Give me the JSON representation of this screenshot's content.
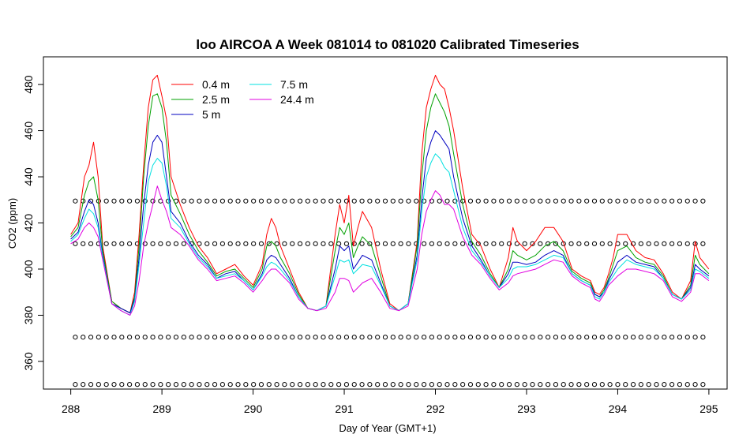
{
  "chart_data": {
    "type": "line",
    "title": "loo AIRCOA A  Week 081014 to 081020  Calibrated Timeseries",
    "xlabel": "Day of Year (GMT+1)",
    "ylabel": "CO2 (ppm)",
    "xlim": [
      287.7,
      295.2
    ],
    "ylim": [
      348,
      492
    ],
    "xticks": [
      288,
      289,
      290,
      291,
      292,
      293,
      294,
      295
    ],
    "xtick_labels": [
      "288",
      "289",
      "290",
      "291",
      "292",
      "293",
      "294",
      "295"
    ],
    "yticks": [
      360,
      380,
      400,
      420,
      440,
      460,
      480
    ],
    "ytick_labels": [
      "360",
      "380",
      "400",
      "420",
      "440",
      "460",
      "480"
    ],
    "legend": {
      "placement": "top-left",
      "entries": [
        "0.4 m",
        "2.5 m",
        "5 m",
        "7.5 m",
        "24.4 m"
      ]
    },
    "series": [
      {
        "name": "0.4 m",
        "color": "#ff0000",
        "x": [
          288.0,
          288.08,
          288.15,
          288.2,
          288.25,
          288.3,
          288.35,
          288.45,
          288.55,
          288.65,
          288.7,
          288.75,
          288.8,
          288.85,
          288.9,
          288.95,
          289.0,
          289.05,
          289.1,
          289.2,
          289.3,
          289.4,
          289.5,
          289.6,
          289.7,
          289.8,
          289.9,
          290.0,
          290.1,
          290.15,
          290.2,
          290.25,
          290.3,
          290.4,
          290.5,
          290.6,
          290.7,
          290.8,
          290.9,
          290.95,
          291.0,
          291.05,
          291.1,
          291.15,
          291.2,
          291.3,
          291.4,
          291.5,
          291.6,
          291.7,
          291.8,
          291.85,
          291.9,
          291.95,
          292.0,
          292.05,
          292.1,
          292.15,
          292.2,
          292.3,
          292.4,
          292.5,
          292.6,
          292.7,
          292.8,
          292.85,
          292.9,
          293.0,
          293.1,
          293.2,
          293.3,
          293.4,
          293.5,
          293.6,
          293.7,
          293.75,
          293.8,
          293.85,
          293.9,
          293.95,
          294.0,
          294.1,
          294.2,
          294.3,
          294.4,
          294.5,
          294.6,
          294.7,
          294.8,
          294.85,
          294.9,
          295.0
        ],
        "y": [
          415,
          420,
          440,
          445,
          455,
          440,
          410,
          386,
          383,
          381,
          390,
          415,
          445,
          470,
          482,
          484,
          475,
          465,
          440,
          428,
          418,
          410,
          405,
          398,
          400,
          402,
          397,
          393,
          402,
          415,
          422,
          418,
          410,
          400,
          390,
          383,
          382,
          384,
          415,
          428,
          420,
          432,
          410,
          418,
          425,
          418,
          400,
          385,
          382,
          385,
          412,
          450,
          470,
          478,
          484,
          480,
          478,
          470,
          460,
          435,
          415,
          410,
          400,
          392,
          405,
          418,
          412,
          408,
          412,
          418,
          418,
          412,
          400,
          397,
          395,
          390,
          389,
          392,
          398,
          405,
          415,
          415,
          408,
          405,
          404,
          398,
          390,
          387,
          395,
          412,
          405,
          400
        ]
      },
      {
        "name": "2.5 m",
        "color": "#00a000",
        "x": [
          288.0,
          288.08,
          288.15,
          288.2,
          288.25,
          288.3,
          288.35,
          288.45,
          288.55,
          288.65,
          288.7,
          288.75,
          288.8,
          288.85,
          288.9,
          288.95,
          289.0,
          289.05,
          289.1,
          289.2,
          289.3,
          289.4,
          289.5,
          289.6,
          289.7,
          289.8,
          289.9,
          290.0,
          290.1,
          290.15,
          290.2,
          290.25,
          290.3,
          290.4,
          290.5,
          290.6,
          290.7,
          290.8,
          290.9,
          290.95,
          291.0,
          291.05,
          291.1,
          291.15,
          291.2,
          291.3,
          291.4,
          291.5,
          291.6,
          291.7,
          291.8,
          291.85,
          291.9,
          291.95,
          292.0,
          292.05,
          292.1,
          292.15,
          292.2,
          292.3,
          292.4,
          292.5,
          292.6,
          292.7,
          292.8,
          292.85,
          292.9,
          293.0,
          293.1,
          293.2,
          293.3,
          293.4,
          293.5,
          293.6,
          293.7,
          293.75,
          293.8,
          293.85,
          293.9,
          293.95,
          294.0,
          294.1,
          294.2,
          294.3,
          294.4,
          294.5,
          294.6,
          294.7,
          294.8,
          294.85,
          294.9,
          295.0
        ],
        "y": [
          414,
          418,
          432,
          438,
          440,
          430,
          408,
          386,
          383,
          381,
          388,
          410,
          440,
          462,
          475,
          476,
          470,
          455,
          432,
          424,
          415,
          408,
          403,
          397,
          399,
          400,
          396,
          392,
          400,
          410,
          412,
          410,
          405,
          398,
          389,
          383,
          382,
          384,
          408,
          418,
          415,
          420,
          405,
          410,
          414,
          410,
          397,
          384,
          382,
          385,
          410,
          440,
          460,
          470,
          476,
          472,
          468,
          462,
          450,
          428,
          412,
          406,
          398,
          392,
          400,
          408,
          406,
          404,
          406,
          410,
          412,
          408,
          399,
          396,
          394,
          389,
          388,
          391,
          396,
          402,
          408,
          410,
          405,
          403,
          402,
          397,
          389,
          387,
          393,
          406,
          402,
          398
        ]
      },
      {
        "name": "5 m",
        "color": "#0000c0",
        "x": [
          288.0,
          288.08,
          288.15,
          288.2,
          288.25,
          288.3,
          288.35,
          288.45,
          288.55,
          288.65,
          288.7,
          288.75,
          288.8,
          288.85,
          288.9,
          288.95,
          289.0,
          289.05,
          289.1,
          289.2,
          289.3,
          289.4,
          289.5,
          289.6,
          289.7,
          289.8,
          289.9,
          290.0,
          290.1,
          290.15,
          290.2,
          290.25,
          290.3,
          290.4,
          290.5,
          290.6,
          290.7,
          290.8,
          290.9,
          290.95,
          291.0,
          291.05,
          291.1,
          291.15,
          291.2,
          291.3,
          291.4,
          291.5,
          291.6,
          291.7,
          291.8,
          291.85,
          291.9,
          291.95,
          292.0,
          292.05,
          292.1,
          292.15,
          292.2,
          292.3,
          292.4,
          292.5,
          292.6,
          292.7,
          292.8,
          292.85,
          292.9,
          293.0,
          293.1,
          293.2,
          293.3,
          293.4,
          293.5,
          293.6,
          293.7,
          293.75,
          293.8,
          293.85,
          293.9,
          293.95,
          294.0,
          294.1,
          294.2,
          294.3,
          294.4,
          294.5,
          294.6,
          294.7,
          294.8,
          294.85,
          294.9,
          295.0
        ],
        "y": [
          413,
          416,
          425,
          430,
          428,
          420,
          406,
          385,
          383,
          381,
          387,
          405,
          428,
          445,
          455,
          458,
          455,
          440,
          425,
          420,
          412,
          406,
          402,
          396,
          398,
          399,
          395,
          391,
          398,
          404,
          406,
          405,
          402,
          396,
          388,
          383,
          382,
          384,
          400,
          410,
          408,
          410,
          400,
          403,
          406,
          404,
          394,
          384,
          382,
          385,
          406,
          430,
          448,
          455,
          460,
          458,
          455,
          452,
          440,
          422,
          410,
          404,
          397,
          392,
          398,
          403,
          403,
          402,
          403,
          406,
          408,
          406,
          398,
          395,
          393,
          389,
          388,
          390,
          395,
          399,
          403,
          406,
          403,
          402,
          401,
          396,
          389,
          387,
          392,
          402,
          400,
          397
        ]
      },
      {
        "name": "7.5 m",
        "color": "#00e0e0",
        "x": [
          288.0,
          288.08,
          288.15,
          288.2,
          288.25,
          288.3,
          288.35,
          288.45,
          288.55,
          288.65,
          288.7,
          288.75,
          288.8,
          288.85,
          288.9,
          288.95,
          289.0,
          289.05,
          289.1,
          289.2,
          289.3,
          289.4,
          289.5,
          289.6,
          289.7,
          289.8,
          289.9,
          290.0,
          290.1,
          290.15,
          290.2,
          290.25,
          290.3,
          290.4,
          290.5,
          290.6,
          290.7,
          290.8,
          290.9,
          290.95,
          291.0,
          291.05,
          291.1,
          291.15,
          291.2,
          291.3,
          291.4,
          291.5,
          291.6,
          291.7,
          291.8,
          291.85,
          291.9,
          291.95,
          292.0,
          292.05,
          292.1,
          292.15,
          292.2,
          292.3,
          292.4,
          292.5,
          292.6,
          292.7,
          292.8,
          292.85,
          292.9,
          293.0,
          293.1,
          293.2,
          293.3,
          293.4,
          293.5,
          293.6,
          293.7,
          293.75,
          293.8,
          293.85,
          293.9,
          293.95,
          294.0,
          294.1,
          294.2,
          294.3,
          294.4,
          294.5,
          294.6,
          294.7,
          294.8,
          294.85,
          294.9,
          295.0
        ],
        "y": [
          412,
          415,
          422,
          426,
          424,
          418,
          405,
          385,
          382,
          380,
          386,
          402,
          420,
          438,
          445,
          448,
          446,
          436,
          422,
          418,
          411,
          405,
          401,
          396,
          397,
          398,
          395,
          391,
          397,
          401,
          403,
          402,
          400,
          395,
          388,
          383,
          382,
          384,
          397,
          404,
          403,
          404,
          398,
          400,
          402,
          401,
          393,
          384,
          382,
          385,
          404,
          425,
          440,
          446,
          450,
          448,
          444,
          442,
          434,
          418,
          408,
          403,
          397,
          392,
          396,
          400,
          401,
          401,
          402,
          404,
          406,
          405,
          398,
          395,
          393,
          388,
          387,
          390,
          394,
          397,
          400,
          404,
          402,
          401,
          400,
          396,
          389,
          387,
          391,
          400,
          399,
          396
        ]
      },
      {
        "name": "24.4 m",
        "color": "#e000e0",
        "x": [
          288.0,
          288.08,
          288.15,
          288.2,
          288.25,
          288.3,
          288.35,
          288.45,
          288.55,
          288.65,
          288.7,
          288.75,
          288.8,
          288.85,
          288.9,
          288.95,
          289.0,
          289.05,
          289.1,
          289.2,
          289.3,
          289.4,
          289.5,
          289.6,
          289.7,
          289.8,
          289.9,
          290.0,
          290.1,
          290.15,
          290.2,
          290.25,
          290.3,
          290.4,
          290.5,
          290.6,
          290.7,
          290.8,
          290.9,
          290.95,
          291.0,
          291.05,
          291.1,
          291.15,
          291.2,
          291.3,
          291.4,
          291.5,
          291.6,
          291.7,
          291.8,
          291.85,
          291.9,
          291.95,
          292.0,
          292.05,
          292.1,
          292.15,
          292.2,
          292.3,
          292.4,
          292.5,
          292.6,
          292.7,
          292.8,
          292.85,
          292.9,
          293.0,
          293.1,
          293.2,
          293.3,
          293.4,
          293.5,
          293.6,
          293.7,
          293.75,
          293.8,
          293.85,
          293.9,
          293.95,
          294.0,
          294.1,
          294.2,
          294.3,
          294.4,
          294.5,
          294.6,
          294.7,
          294.8,
          294.85,
          294.9,
          295.0
        ],
        "y": [
          411,
          413,
          418,
          420,
          418,
          414,
          404,
          385,
          382,
          380,
          384,
          395,
          410,
          420,
          428,
          436,
          430,
          425,
          418,
          415,
          410,
          404,
          400,
          395,
          396,
          397,
          394,
          390,
          395,
          398,
          400,
          400,
          398,
          394,
          387,
          383,
          382,
          383,
          390,
          396,
          396,
          395,
          390,
          392,
          394,
          396,
          390,
          383,
          382,
          384,
          400,
          415,
          425,
          430,
          434,
          432,
          428,
          428,
          426,
          414,
          406,
          402,
          396,
          391,
          394,
          397,
          398,
          399,
          400,
          402,
          404,
          403,
          397,
          394,
          392,
          387,
          386,
          389,
          393,
          395,
          397,
          400,
          400,
          399,
          398,
          395,
          388,
          386,
          390,
          398,
          398,
          395
        ]
      }
    ],
    "markers": {
      "x_start": 288.05,
      "x_end": 295.0,
      "x_step": 0.085,
      "y_levels": [
        429.5,
        411,
        370.5,
        350
      ]
    }
  }
}
